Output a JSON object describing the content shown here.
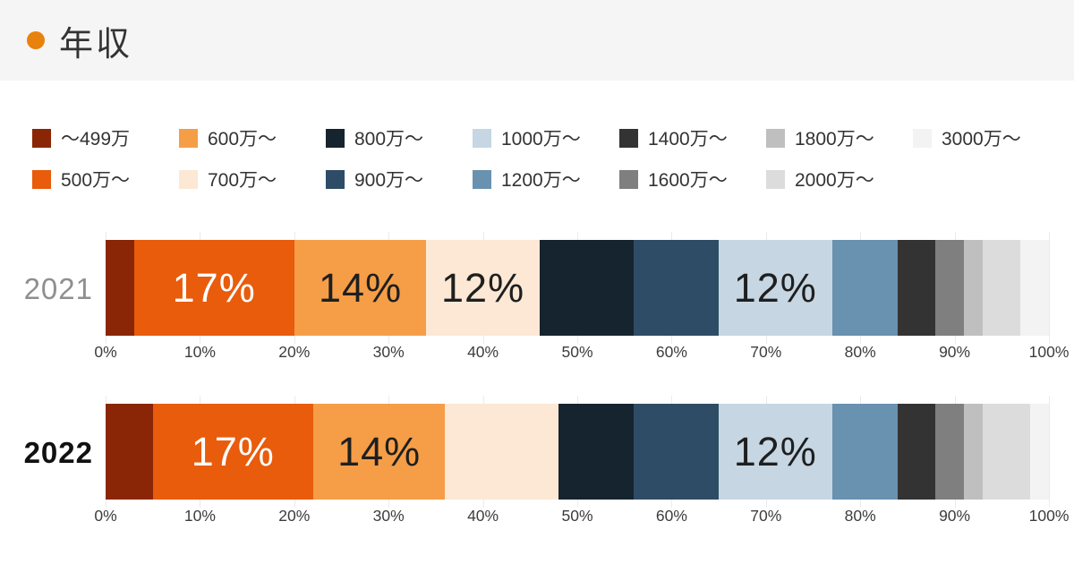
{
  "header": {
    "title": "年収"
  },
  "colors": {
    "accent_bullet": "#e8820c",
    "header_bg": "#f5f5f6",
    "gridline": "#ebebeb",
    "year_2021_label": "#8f8f8f",
    "year_2022_label": "#111111"
  },
  "legend": {
    "items": [
      {
        "label": "～499万",
        "color": "#8a2605"
      },
      {
        "label": "500万～",
        "color": "#e85c0c"
      },
      {
        "label": "600万～",
        "color": "#f59e47"
      },
      {
        "label": "700万～",
        "color": "#fce8d5"
      },
      {
        "label": "800万～",
        "color": "#16242f"
      },
      {
        "label": "900万～",
        "color": "#2e4c66"
      },
      {
        "label": "1000万～",
        "color": "#c6d6e2"
      },
      {
        "label": "1200万～",
        "color": "#6991b0"
      },
      {
        "label": "1400万～",
        "color": "#333333"
      },
      {
        "label": "1600万～",
        "color": "#7f7f7f"
      },
      {
        "label": "1800万～",
        "color": "#bfbfbf"
      },
      {
        "label": "2000万～",
        "color": "#dcdcdc"
      },
      {
        "label": "3000万～",
        "color": "#f3f3f3"
      }
    ]
  },
  "axis": {
    "tick_labels": [
      "0%",
      "10%",
      "20%",
      "30%",
      "40%",
      "50%",
      "60%",
      "70%",
      "80%",
      "90%",
      "100%"
    ]
  },
  "chart_data": {
    "type": "bar",
    "stacked": true,
    "orientation": "horizontal",
    "title": "年収",
    "categories": [
      "～499万",
      "500万～",
      "600万～",
      "700万～",
      "800万～",
      "900万～",
      "1000万～",
      "1200万～",
      "1400万～",
      "1600万～",
      "1800万～",
      "2000万～",
      "3000万～"
    ],
    "xlim": [
      0,
      100
    ],
    "x_tick_step": 10,
    "grid": true,
    "legend_position": "top",
    "series": [
      {
        "name": "2021",
        "values": [
          3,
          17,
          14,
          12,
          10,
          9,
          12,
          7,
          4,
          3,
          2,
          4,
          3
        ],
        "data_labels": [
          {
            "index": 1,
            "text": "17%",
            "color": "#ffffff"
          },
          {
            "index": 2,
            "text": "14%",
            "color": "#1f1f1f"
          },
          {
            "index": 3,
            "text": "12%",
            "color": "#1f1f1f"
          },
          {
            "index": 6,
            "text": "12%",
            "color": "#1f1f1f"
          }
        ]
      },
      {
        "name": "2022",
        "values": [
          5,
          17,
          14,
          12,
          8,
          9,
          12,
          7,
          4,
          3,
          2,
          5,
          2
        ],
        "data_labels": [
          {
            "index": 1,
            "text": "17%",
            "color": "#ffffff"
          },
          {
            "index": 2,
            "text": "14%",
            "color": "#1f1f1f"
          },
          {
            "index": 6,
            "text": "12%",
            "color": "#1f1f1f"
          }
        ]
      }
    ]
  }
}
